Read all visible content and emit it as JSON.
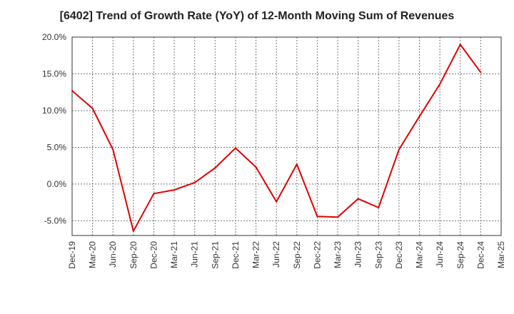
{
  "chart_data": {
    "type": "line",
    "title": "[6402]  Trend of Growth Rate (YoY) of 12-Month Moving Sum of Revenues",
    "xlabel": "",
    "ylabel": "",
    "ylim": [
      -7,
      20
    ],
    "yticks": [
      20,
      15,
      10,
      5,
      0,
      -5
    ],
    "ytick_labels": [
      "20.0%",
      "15.0%",
      "10.0%",
      "5.0%",
      "0.0%",
      "-5.0%"
    ],
    "x_tick_labels": [
      "Dec-19",
      "Mar-20",
      "Jun-20",
      "Sep-20",
      "Dec-20",
      "Mar-21",
      "Jun-21",
      "Sep-21",
      "Dec-21",
      "Mar-22",
      "Jun-22",
      "Sep-22",
      "Dec-22",
      "Mar-23",
      "Jun-23",
      "Sep-23",
      "Dec-23",
      "Mar-24",
      "Jun-24",
      "Sep-24",
      "Dec-24",
      "Mar-25"
    ],
    "grid": true,
    "legend": "none",
    "series": [
      {
        "color": "#e00000",
        "x": [
          "Dec-19",
          "Mar-20",
          "Jun-20",
          "Sep-20",
          "Dec-20",
          "Mar-21",
          "Jun-21",
          "Sep-21",
          "Dec-21",
          "Mar-22",
          "Jun-22",
          "Sep-22",
          "Dec-22",
          "Mar-23",
          "Jun-23",
          "Sep-23",
          "Dec-23",
          "Mar-24",
          "Jun-24",
          "Sep-24",
          "Dec-24"
        ],
        "values": [
          12.7,
          10.3,
          4.7,
          -6.4,
          -1.3,
          -0.8,
          0.2,
          2.2,
          4.9,
          2.3,
          -2.4,
          2.7,
          -4.4,
          -4.5,
          -2.0,
          -3.2,
          4.7,
          9.2,
          13.6,
          19.0,
          15.2
        ]
      }
    ]
  }
}
